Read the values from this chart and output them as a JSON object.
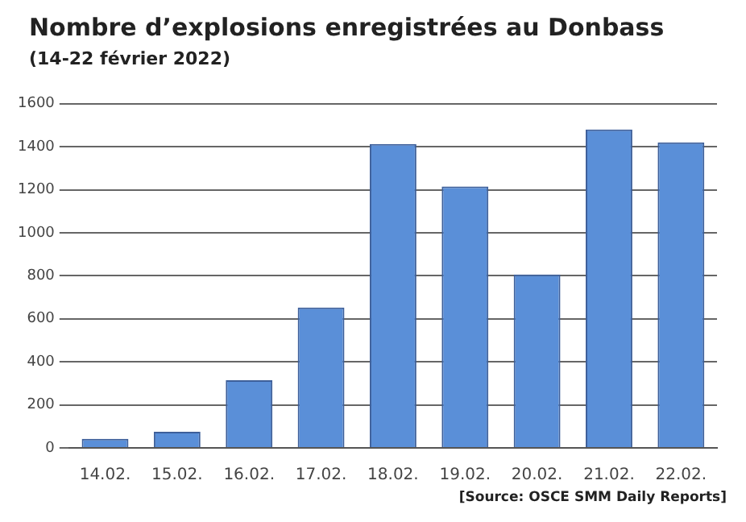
{
  "chart_data": {
    "type": "bar",
    "title": "Nombre d’explosions enregistrées au Donbass",
    "subtitle": "(14-22 février 2022)",
    "categories": [
      "14.02.",
      "15.02.",
      "16.02.",
      "17.02.",
      "18.02.",
      "19.02.",
      "20.02.",
      "21.02.",
      "22.02."
    ],
    "values": [
      42,
      75,
      315,
      653,
      1413,
      1215,
      806,
      1480,
      1420
    ],
    "color": "#5a8fd8",
    "ylim": [
      0,
      1600
    ],
    "yticks": [
      0,
      200,
      400,
      600,
      800,
      1000,
      1200,
      1400,
      1600
    ],
    "grid": "y",
    "legend": false,
    "annotations": [
      "[Source: OSCE SMM Daily Reports]"
    ]
  }
}
